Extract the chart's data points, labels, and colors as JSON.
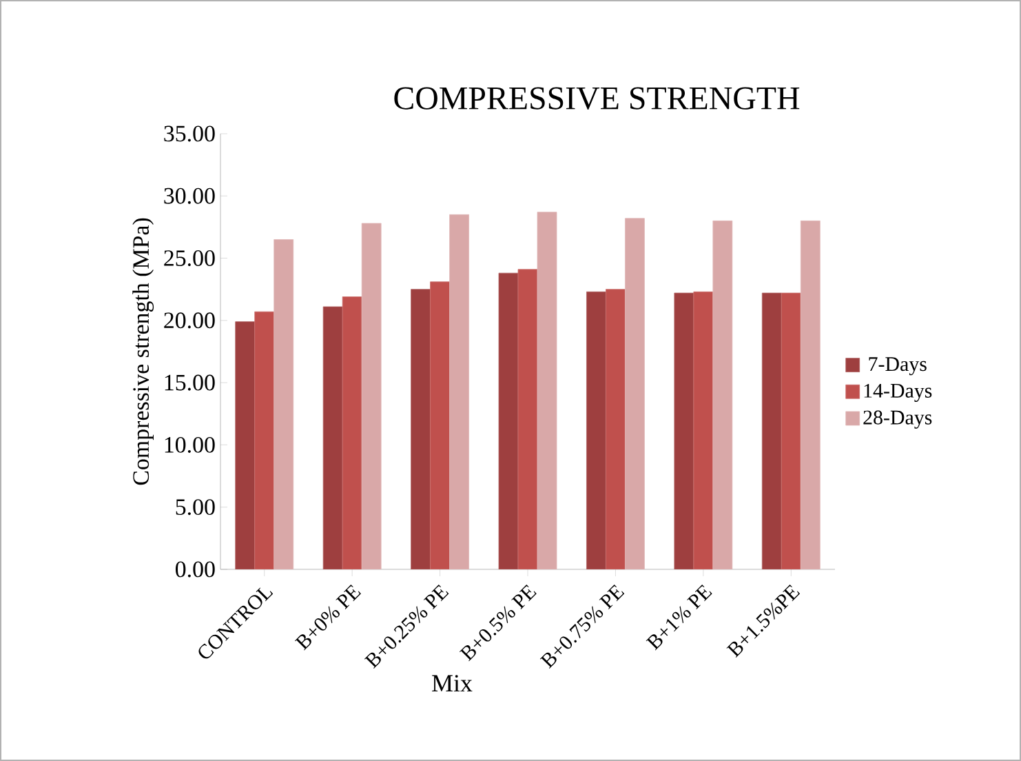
{
  "chart_data": {
    "type": "bar",
    "title": "COMPRESSIVE STRENGTH",
    "xlabel": "Mix",
    "ylabel": "Compressive strength  (MPa)",
    "categories": [
      "CONTROL",
      "B+0% PE",
      "B+0.25% PE",
      "B+0.5% PE",
      "B+0.75% PE",
      "B+1% PE",
      "B+1.5%PE"
    ],
    "series": [
      {
        "name": "7-Days",
        "color": "#9e3f3f",
        "values": [
          19.9,
          21.1,
          22.5,
          23.8,
          22.3,
          22.2,
          22.2
        ]
      },
      {
        "name": "14-Days",
        "color": "#c0504d",
        "values": [
          20.7,
          21.9,
          23.1,
          24.1,
          22.5,
          22.3,
          22.2
        ]
      },
      {
        "name": "28-Days",
        "color": "#d9a8a8",
        "values": [
          26.5,
          27.8,
          28.5,
          28.7,
          28.2,
          28.0,
          28.0
        ]
      }
    ],
    "ylim": [
      0,
      35
    ],
    "yticks": [
      {
        "value": 0,
        "label": "0.00"
      },
      {
        "value": 5,
        "label": "5.00"
      },
      {
        "value": 10,
        "label": "10.00"
      },
      {
        "value": 15,
        "label": "15.00"
      },
      {
        "value": 20,
        "label": "20.00"
      },
      {
        "value": 25,
        "label": "25.00"
      },
      {
        "value": 30,
        "label": "30.00"
      },
      {
        "value": 35,
        "label": "35.00"
      }
    ],
    "legend": "right",
    "grid": false
  }
}
